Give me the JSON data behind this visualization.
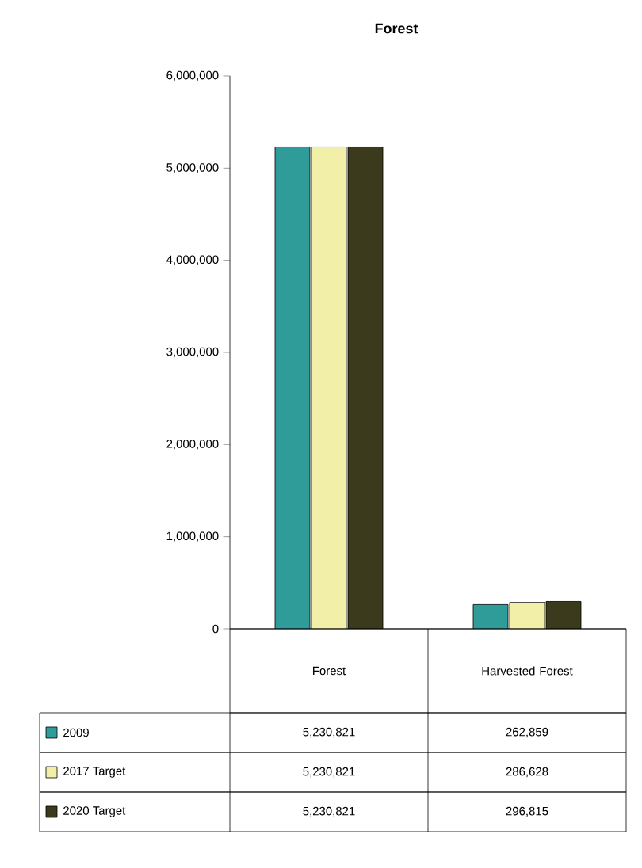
{
  "chart_data": {
    "type": "bar",
    "title": "Forest",
    "categories": [
      "Forest",
      "Harvested Forest"
    ],
    "series": [
      {
        "name": "2009",
        "color": "#2f9c9a",
        "values": [
          5230821,
          262859
        ],
        "value_labels": [
          "5,230,821",
          "262,859"
        ]
      },
      {
        "name": "2017 Target",
        "color": "#f2f0a8",
        "values": [
          5230821,
          286628
        ],
        "value_labels": [
          "5,230,821",
          "286,628"
        ]
      },
      {
        "name": "2020 Target",
        "color": "#3b3a1c",
        "values": [
          5230821,
          296815
        ],
        "value_labels": [
          "5,230,821",
          "296,815"
        ]
      }
    ],
    "ylim": [
      0,
      6000000
    ],
    "yticks": [
      {
        "value": 0,
        "label": "0"
      },
      {
        "value": 1000000,
        "label": "1,000,000"
      },
      {
        "value": 2000000,
        "label": "2,000,000"
      },
      {
        "value": 3000000,
        "label": "3,000,000"
      },
      {
        "value": 4000000,
        "label": "4,000,000"
      },
      {
        "value": 5000000,
        "label": "5,000,000"
      },
      {
        "value": 6000000,
        "label": "6,000,000"
      }
    ],
    "legend": "bottom",
    "grid": false
  }
}
